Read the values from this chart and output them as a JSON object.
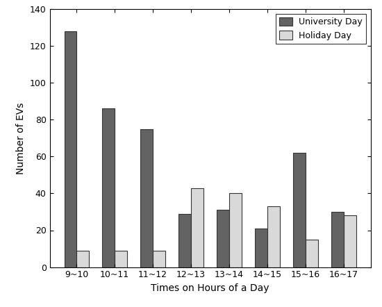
{
  "categories": [
    "9~10",
    "10~11",
    "11~12",
    "12~13",
    "13~14",
    "14~15",
    "15~16",
    "16~17"
  ],
  "university_day": [
    128,
    86,
    75,
    29,
    31,
    21,
    62,
    30
  ],
  "holiday_day": [
    9,
    9,
    9,
    43,
    40,
    33,
    15,
    28
  ],
  "university_color": "#636363",
  "holiday_color": "#d9d9d9",
  "xlabel": "Times on Hours of a Day",
  "ylabel": "Number of EVs",
  "ylim": [
    0,
    140
  ],
  "yticks": [
    0,
    20,
    40,
    60,
    80,
    100,
    120,
    140
  ],
  "legend_labels": [
    "University Day",
    "Holiday Day"
  ],
  "bar_width": 0.32,
  "edge_color": "#333333",
  "fig_width": 5.5,
  "fig_height": 4.42,
  "dpi": 100
}
